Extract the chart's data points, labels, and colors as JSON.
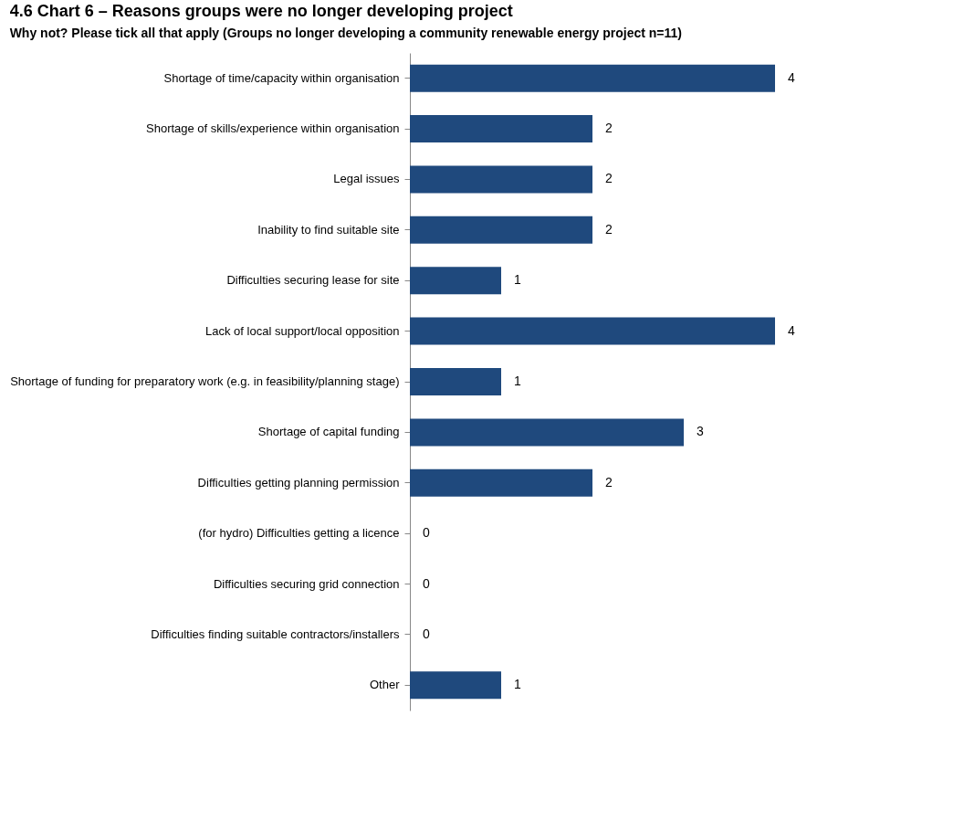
{
  "chart_data": {
    "type": "bar",
    "orientation": "horizontal",
    "title": "4.6 Chart 6 – Reasons groups were no longer developing project",
    "subtitle": "Why not? Please tick all that apply (Groups no longer developing a community renewable energy project n=11)",
    "categories": [
      "Shortage of time/capacity within organisation",
      "Shortage of skills/experience within organisation",
      "Legal issues",
      "Inability to find suitable site",
      "Difficulties securing lease for site",
      "Lack of local support/local opposition",
      "Shortage of funding for preparatory work (e.g. in feasibility/planning stage)",
      "Shortage of capital funding",
      "Difficulties getting planning permission",
      "(for hydro) Difficulties getting a licence",
      "Difficulties securing grid connection",
      "Difficulties finding suitable contractors/installers",
      "Other"
    ],
    "values": [
      4,
      2,
      2,
      2,
      1,
      4,
      1,
      3,
      2,
      0,
      0,
      0,
      1
    ],
    "color": "#1f497d",
    "data_labels": true
  }
}
